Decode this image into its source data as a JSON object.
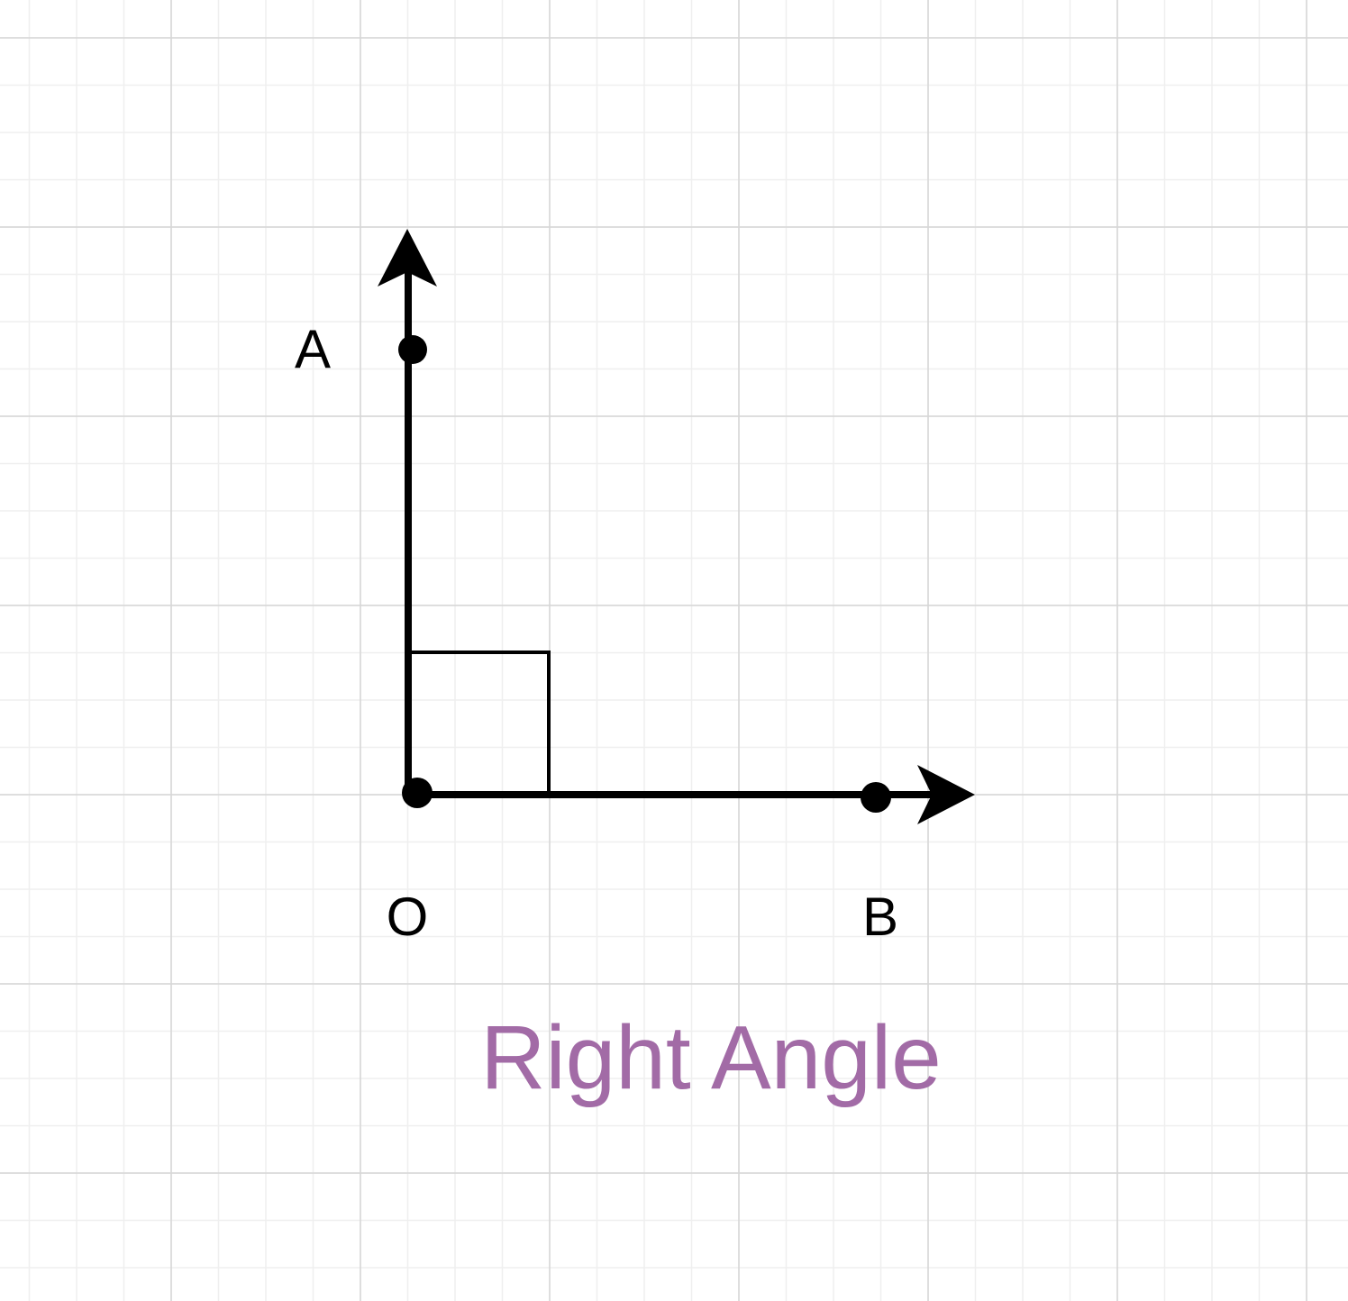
{
  "diagram": {
    "title": "Right Angle",
    "points": {
      "a": "A",
      "o": "O",
      "b": "B"
    }
  },
  "colors": {
    "title": "#a26ba6",
    "stroke": "#000000",
    "grid_minor": "#efefef",
    "grid_major": "#d6d6d6",
    "background": "#ffffff"
  }
}
